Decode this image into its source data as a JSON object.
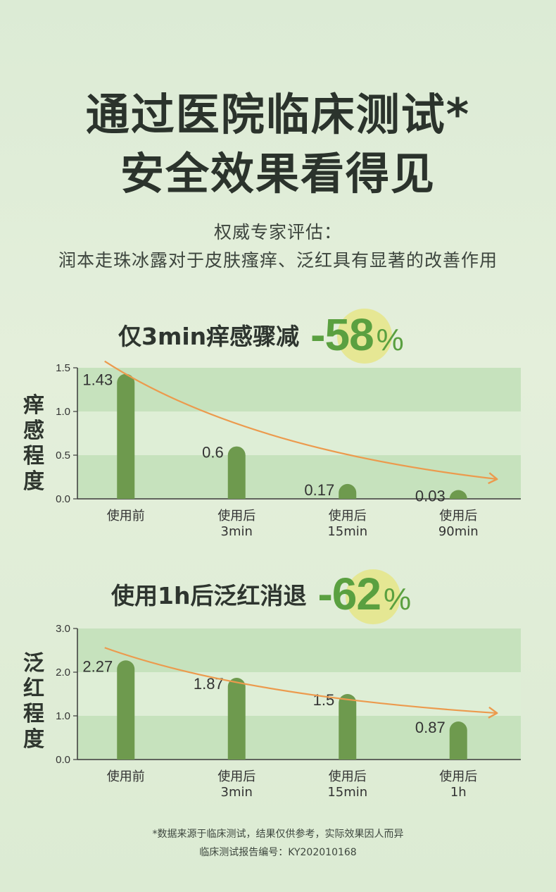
{
  "headline": {
    "line1": "通过医院临床测试*",
    "line2": "安全效果看得见"
  },
  "subtitle": {
    "line1": "权威专家评估：",
    "line2": "润本走珠冰露对于皮肤瘙痒、泛红具有显著的改善作用"
  },
  "charts": [
    {
      "stat_label": "仅3min痒感骤减",
      "stat_value": "-58",
      "stat_unit": "%",
      "ylabel": [
        "痒",
        "感",
        "程",
        "度"
      ]
    },
    {
      "stat_label": "使用1h后泛红消退",
      "stat_value": "-62",
      "stat_unit": "%",
      "ylabel": [
        "泛",
        "红",
        "程",
        "度"
      ]
    }
  ],
  "chart_data": [
    {
      "type": "bar",
      "categories": [
        [
          "使用前"
        ],
        [
          "使用后",
          "3min"
        ],
        [
          "使用后",
          "15min"
        ],
        [
          "使用后",
          "90min"
        ]
      ],
      "values": [
        1.43,
        0.6,
        0.17,
        0.03
      ],
      "value_labels": [
        "1.43",
        "0.6",
        "0.17",
        "0.03"
      ],
      "ylabel": "痒感程度",
      "ylim": [
        0,
        1.5
      ],
      "yticks": [
        "0.0",
        "0.5",
        "1.0",
        "1.5"
      ],
      "bar_color": "#6e9a4e",
      "trend_color": "#ec9a4d"
    },
    {
      "type": "bar",
      "categories": [
        [
          "使用前"
        ],
        [
          "使用后",
          "3min"
        ],
        [
          "使用后",
          "15min"
        ],
        [
          "使用后",
          "1h"
        ]
      ],
      "values": [
        2.27,
        1.87,
        1.5,
        0.87
      ],
      "value_labels": [
        "2.27",
        "1.87",
        "1.5",
        "0.87"
      ],
      "ylabel": "泛红程度",
      "ylim": [
        0,
        3.0
      ],
      "yticks": [
        "0.0",
        "1.0",
        "2.0",
        "3.0"
      ],
      "bar_color": "#6e9a4e",
      "trend_color": "#ec9a4d"
    }
  ],
  "footnote": {
    "line1": "*数据来源于临床测试，结果仅供参考，实际效果因人而异",
    "line2": "临床测试报告编号：KY202010168"
  },
  "colors": {
    "band_dark": "#c6e2bd",
    "band_light": "#deeed6",
    "accent_green": "#5aa040",
    "highlight_yellow": "#e6e58c"
  }
}
